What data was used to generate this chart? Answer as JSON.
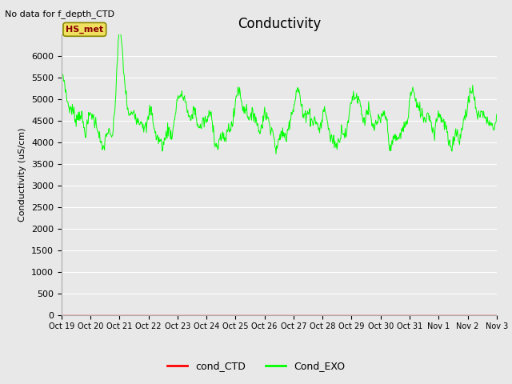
{
  "title": "Conductivity",
  "ylabel": "Conductivity (uS/cm)",
  "no_data_text": "No data for f_depth_CTD",
  "annotation_text": "HS_met",
  "ylim": [
    0,
    6500
  ],
  "yticks": [
    0,
    500,
    1000,
    1500,
    2000,
    2500,
    3000,
    3500,
    4000,
    4500,
    5000,
    5500,
    6000
  ],
  "x_tick_labels": [
    "Oct 19",
    "Oct 20",
    "Oct 21",
    "Oct 22",
    "Oct 23",
    "Oct 24",
    "Oct 25",
    "Oct 26",
    "Oct 27",
    "Oct 28",
    "Oct 29",
    "Oct 30",
    "Oct 31",
    "Nov 1",
    "Nov 2",
    "Nov 3"
  ],
  "outer_bg_color": "#e8e8e8",
  "plot_bg_color": "#e8e8e8",
  "grid_color": "#ffffff",
  "line_color_exo": "#00ff00",
  "line_color_ctd": "#ff0000",
  "legend_labels": [
    "cond_CTD",
    "Cond_EXO"
  ],
  "title_fontsize": 12,
  "axis_label_fontsize": 8,
  "tick_fontsize": 8
}
